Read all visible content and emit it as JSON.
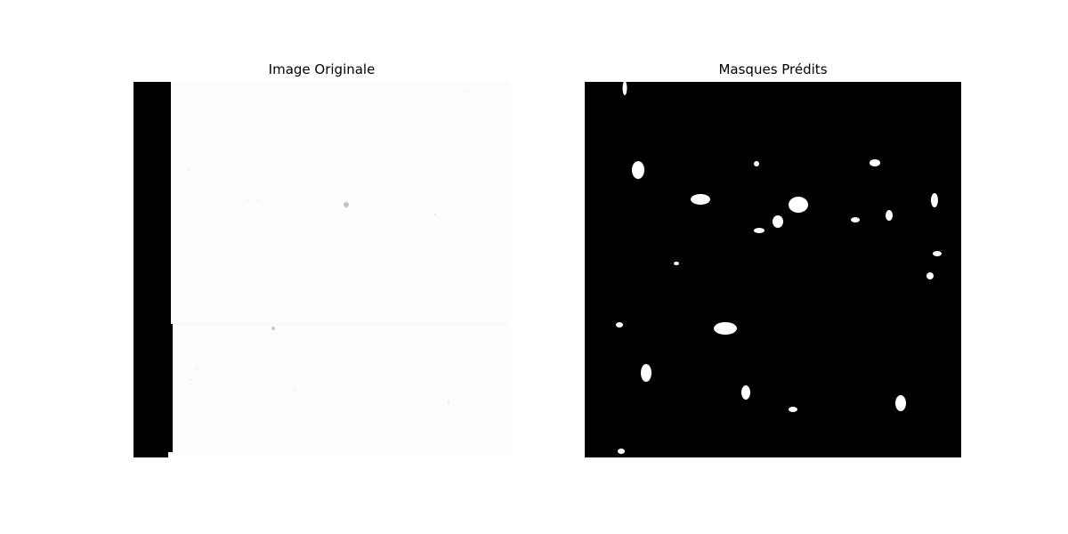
{
  "titles": {
    "left": "Image Originale",
    "right": "Masques Prédits"
  },
  "colors": {
    "page_background": "#ffffff",
    "photo_background": "#fdfdfd",
    "photo_left_strip": "#000000",
    "mask_background": "#000000",
    "mask_blob": "#ffffff",
    "photo_speck": "#c9c2b2"
  }
}
